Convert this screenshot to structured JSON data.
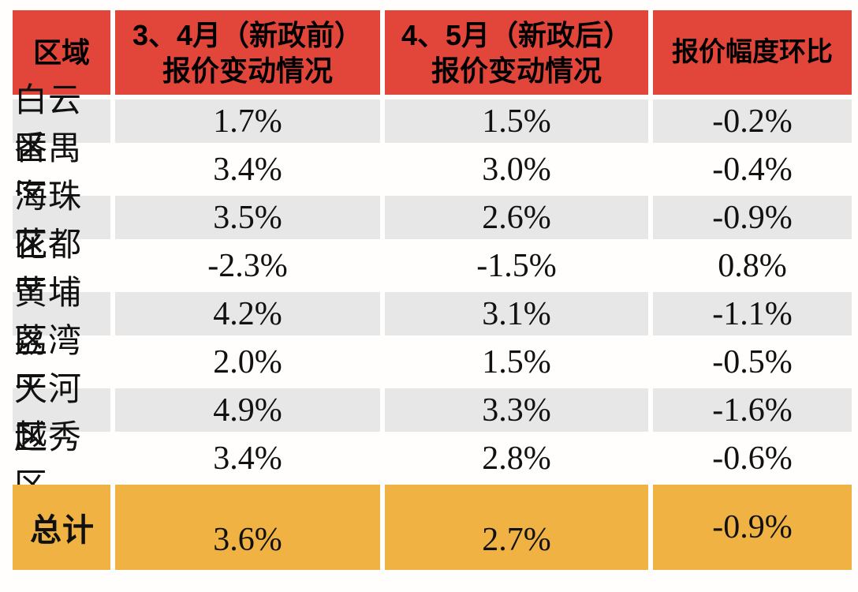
{
  "colors": {
    "header_red": "#e2463b",
    "total_orange": "#efb243",
    "stripe_gray": "#e7e7e7",
    "text_black": "#111111"
  },
  "table": {
    "header": {
      "region": "区域",
      "before_line1": "3、4月（新政前）",
      "before_line2": "报价变动情况",
      "after_line1": "4、5月（新政后）",
      "after_line2": "报价变动情况",
      "mom": "报价幅度环比"
    },
    "rows": [
      {
        "region": "白云区",
        "before": "1.7%",
        "after": "1.5%",
        "mom": "-0.2%"
      },
      {
        "region": "番禺区",
        "before": "3.4%",
        "after": "3.0%",
        "mom": "-0.4%"
      },
      {
        "region": "海珠区",
        "before": "3.5%",
        "after": "2.6%",
        "mom": "-0.9%"
      },
      {
        "region": "花都区",
        "before": "-2.3%",
        "after": "-1.5%",
        "mom": "0.8%"
      },
      {
        "region": "黄埔区",
        "before": "4.2%",
        "after": "3.1%",
        "mom": "-1.1%"
      },
      {
        "region": "荔湾区",
        "before": "2.0%",
        "after": "1.5%",
        "mom": "-0.5%"
      },
      {
        "region": "天河区",
        "before": "4.9%",
        "after": "3.3%",
        "mom": "-1.6%"
      },
      {
        "region": "越秀区",
        "before": "3.4%",
        "after": "2.8%",
        "mom": "-0.6%"
      }
    ],
    "total": {
      "label": "总计",
      "before": "3.6%",
      "after": "2.7%",
      "mom": "-0.9%"
    }
  },
  "chart_data": {
    "type": "table",
    "columns": [
      "区域",
      "3、4月（新政前）报价变动情况",
      "4、5月（新政后）报价变动情况",
      "报价幅度环比"
    ],
    "rows": [
      [
        "白云区",
        "1.7%",
        "1.5%",
        "-0.2%"
      ],
      [
        "番禺区",
        "3.4%",
        "3.0%",
        "-0.4%"
      ],
      [
        "海珠区",
        "3.5%",
        "2.6%",
        "-0.9%"
      ],
      [
        "花都区",
        "-2.3%",
        "-1.5%",
        "0.8%"
      ],
      [
        "黄埔区",
        "4.2%",
        "3.1%",
        "-1.1%"
      ],
      [
        "荔湾区",
        "2.0%",
        "1.5%",
        "-0.5%"
      ],
      [
        "天河区",
        "4.9%",
        "3.3%",
        "-1.6%"
      ],
      [
        "越秀区",
        "3.4%",
        "2.8%",
        "-0.6%"
      ]
    ],
    "total_row": [
      "总计",
      "3.6%",
      "2.7%",
      "-0.9%"
    ],
    "series": [
      {
        "name": "3、4月（新政前）报价变动情况",
        "values": [
          1.7,
          3.4,
          3.5,
          -2.3,
          4.2,
          2.0,
          4.9,
          3.4
        ],
        "total": 3.6
      },
      {
        "name": "4、5月（新政后）报价变动情况",
        "values": [
          1.5,
          3.0,
          2.6,
          -1.5,
          3.1,
          1.5,
          3.3,
          2.8
        ],
        "total": 2.7
      },
      {
        "name": "报价幅度环比",
        "values": [
          -0.2,
          -0.4,
          -0.9,
          0.8,
          -1.1,
          -0.5,
          -1.6,
          -0.6
        ],
        "total": -0.9
      }
    ],
    "categories": [
      "白云区",
      "番禺区",
      "海珠区",
      "花都区",
      "黄埔区",
      "荔湾区",
      "天河区",
      "越秀区"
    ],
    "unit": "%"
  }
}
